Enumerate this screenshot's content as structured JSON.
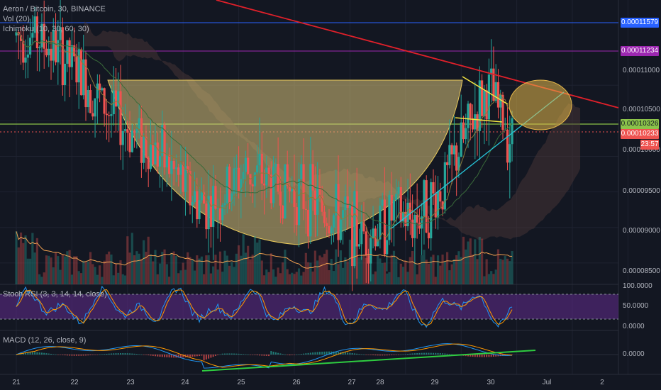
{
  "legend": {
    "symbol": "Aeron / Bitcoin, 30, BINANCE",
    "vol": "Vol (20)",
    "ichimoku": "Ichimoku (10, 30, 60, 30)"
  },
  "panes": {
    "stoch_label": "Stoch RSI (3, 3, 14, 14, close)",
    "macd_label": "MACD (12, 26, close, 9)"
  },
  "price_axis": {
    "ticks": [
      "0.00011000",
      "0.00010500",
      "0.00010000",
      "0.00009500",
      "0.00009000",
      "0.00008500"
    ],
    "badges": {
      "top": "0.00011579",
      "purple": "0.00011234",
      "green": "0.00010326",
      "last": "0.00010233",
      "countdown": "23:57"
    }
  },
  "stoch_axis": [
    "100.0000",
    "50.0000",
    "0.0000"
  ],
  "macd_axis": [
    "0.0000"
  ],
  "time_axis": [
    "21",
    "22",
    "23",
    "24",
    "25",
    "26",
    "27",
    "28",
    "29",
    "30",
    "Jul",
    "2"
  ],
  "colors": {
    "background": "#131722",
    "up": "#26a69a",
    "down": "#ef5350",
    "trend_red": "#e0202a",
    "trend_cyan": "#26c6da",
    "trend_green": "#2ecc40",
    "flag_yellow": "#f5e642",
    "hline_blue": "#2962ff",
    "hline_purple": "#9c27b0",
    "hline_green": "#8bc34a",
    "cup_fill": "#d9c27a",
    "circle_fill": "#e6b84a"
  },
  "chart_data": {
    "type": "candlestick",
    "title": "Aeron / Bitcoin, 30, BINANCE",
    "ylim": [
      8.2e-06,
      1.22e-05
    ],
    "x_range_days": [
      21,
      32
    ],
    "price_path_days": [
      21.3,
      21.7,
      22.1,
      22.4,
      22.7,
      23.0,
      23.3,
      23.6,
      23.9,
      24.2,
      24.5,
      24.8,
      25.1,
      25.4,
      25.7,
      26.0,
      26.3,
      26.6,
      26.9,
      27.2,
      27.5,
      27.8,
      28.1,
      28.4,
      28.7,
      28.9,
      29.1,
      29.3,
      29.5,
      29.7,
      29.95
    ],
    "price_path_values": [
      1.17e-05,
      1.15e-05,
      1.12e-05,
      1.09e-05,
      1.06e-05,
      1.04e-05,
      1.02e-05,
      1e-05,
      9.7e-06,
      9.4e-06,
      9.3e-06,
      9.5e-06,
      9.8e-06,
      9.7e-06,
      9.6e-06,
      9.5e-06,
      9.4e-06,
      9.2e-06,
      9.1e-06,
      8.9e-06,
      9e-06,
      9.2e-06,
      9.1e-06,
      9.3e-06,
      9.6e-06,
      1e-05,
      1.03e-05,
      1.07e-05,
      1.09e-05,
      1.06e-05,
      1.02e-05
    ],
    "horizontal_levels": [
      0.00011579,
      0.00011234,
      0.00010326,
      0.00010233
    ],
    "stoch_levels": [
      80,
      20
    ],
    "stoch_ylim": [
      0,
      100
    ]
  }
}
